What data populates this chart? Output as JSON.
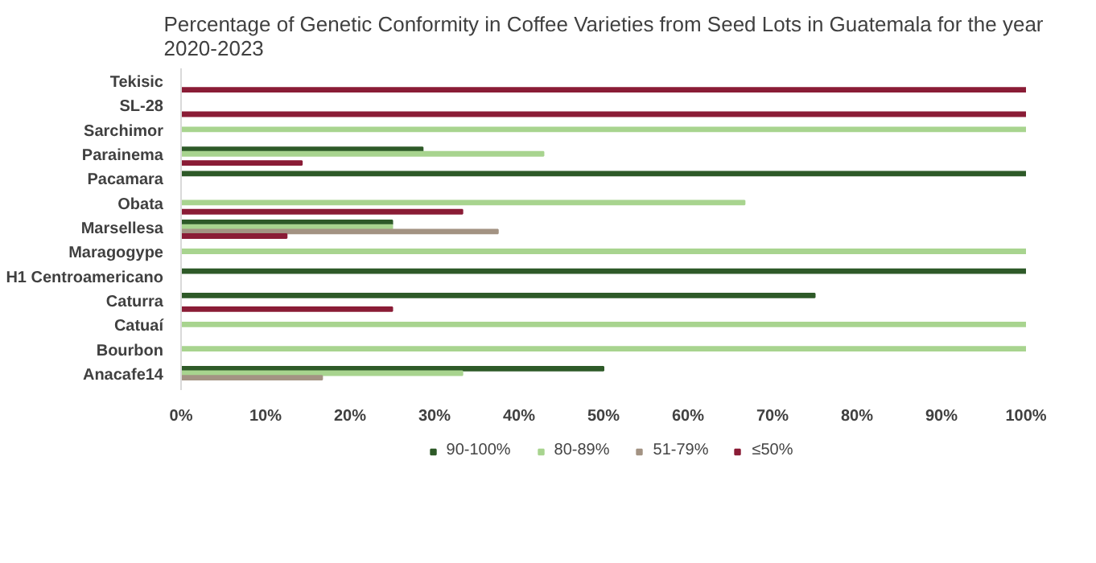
{
  "chart_data": {
    "type": "bar",
    "orientation": "horizontal",
    "title": "Percentage of Genetic Conformity in Coffee Varieties from Seed Lots in Guatemala for the year\n2020-2023",
    "categories": [
      "Tekisic",
      "SL-28",
      "Sarchimor",
      "Parainema",
      "Pacamara",
      "Obata",
      "Marsellesa",
      "Maragogype",
      "H1 Centroamericano",
      "Caturra",
      "Catuaí",
      "Bourbon",
      "Anacafe14"
    ],
    "series": [
      {
        "name": "90-100%",
        "color": "#2e5a28",
        "values": [
          null,
          null,
          null,
          28.6,
          100,
          null,
          25,
          null,
          100,
          75,
          null,
          null,
          50
        ]
      },
      {
        "name": "80-89%",
        "color": "#a8d48f",
        "values": [
          null,
          null,
          100,
          42.9,
          null,
          66.7,
          25,
          100,
          null,
          null,
          100,
          100,
          33.3
        ]
      },
      {
        "name": "51-79%",
        "color": "#a39383",
        "values": [
          null,
          null,
          null,
          null,
          null,
          null,
          37.5,
          null,
          null,
          null,
          null,
          null,
          16.7
        ]
      },
      {
        "name": "≤50%",
        "color": "#8a1c36",
        "values": [
          100,
          100,
          null,
          14.3,
          null,
          33.3,
          12.5,
          null,
          null,
          25,
          null,
          null,
          null
        ]
      }
    ],
    "xlim": [
      0,
      100
    ],
    "xticks": [
      {
        "value": 0,
        "label": "0%"
      },
      {
        "value": 10,
        "label": "10%"
      },
      {
        "value": 20,
        "label": "20%"
      },
      {
        "value": 30,
        "label": "30%"
      },
      {
        "value": 40,
        "label": "40%"
      },
      {
        "value": 50,
        "label": "50%"
      },
      {
        "value": 60,
        "label": "60%"
      },
      {
        "value": 70,
        "label": "70%"
      },
      {
        "value": 80,
        "label": "80%"
      },
      {
        "value": 90,
        "label": "90%"
      },
      {
        "value": 100,
        "label": "100%"
      }
    ],
    "grid": false,
    "legend": "bottom"
  }
}
